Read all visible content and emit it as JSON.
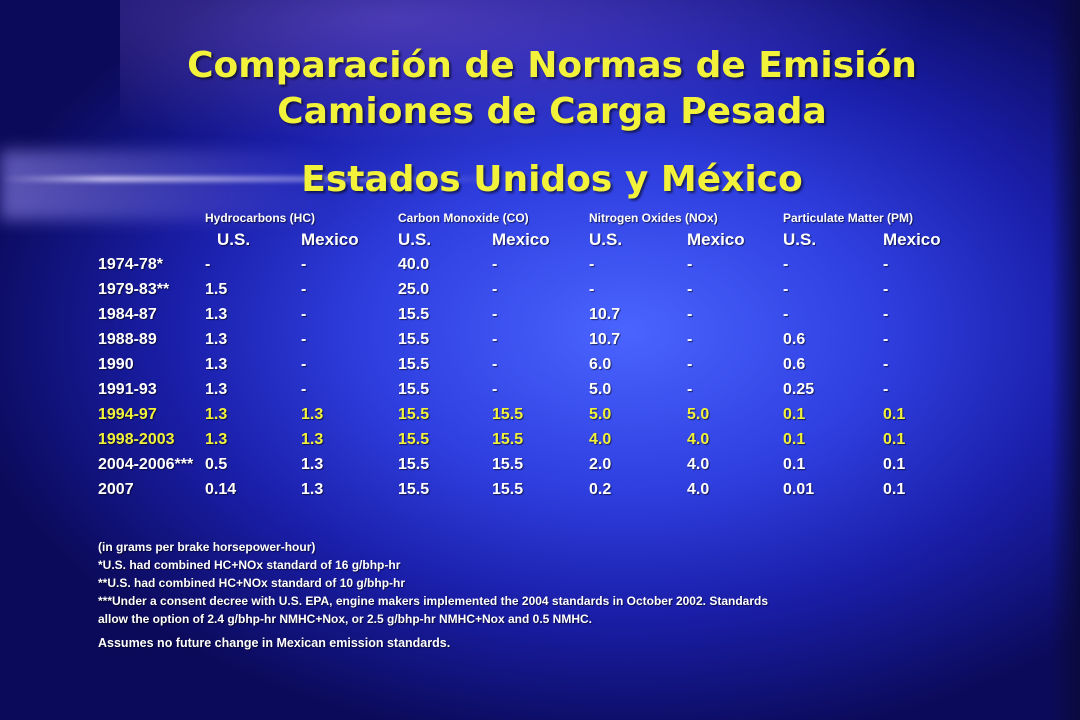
{
  "title": {
    "line1": "Comparación de Normas de Emisión",
    "line2": "Camiones de Carga Pesada",
    "line3": "Estados Unidos y México"
  },
  "table": {
    "pollutants": [
      "Hydrocarbons (HC)",
      "Carbon Monoxide (CO)",
      "Nitrogen Oxides (NOx)",
      "Particulate Matter (PM)"
    ],
    "units": [
      "U.S.",
      "Mexico",
      "U.S.",
      "Mexico",
      "U.S.",
      "Mexico",
      "U.S.",
      "Mexico"
    ],
    "rows": [
      {
        "year": "1974-78*",
        "values": [
          "-",
          "-",
          "40.0",
          "-",
          "-",
          "-",
          "-",
          "-"
        ]
      },
      {
        "year": "1979-83**",
        "values": [
          "1.5",
          "-",
          "25.0",
          "-",
          "-",
          "-",
          "-",
          "-"
        ]
      },
      {
        "year": "1984-87",
        "values": [
          "1.3",
          "-",
          "15.5",
          "-",
          "10.7",
          "-",
          "-",
          "-"
        ]
      },
      {
        "year": "1988-89",
        "values": [
          "1.3",
          "-",
          "15.5",
          "-",
          "10.7",
          "-",
          "0.6",
          "-"
        ]
      },
      {
        "year": "1990",
        "values": [
          "1.3",
          "-",
          "15.5",
          "-",
          "6.0",
          "-",
          "0.6",
          "-"
        ]
      },
      {
        "year": "1991-93",
        "values": [
          "1.3",
          "-",
          "15.5",
          "-",
          "5.0",
          "-",
          "0.25",
          "-"
        ]
      },
      {
        "year": "1994-97",
        "values": [
          "1.3",
          "1.3",
          "15.5",
          "15.5",
          "5.0",
          "5.0",
          "0.1",
          "0.1"
        ]
      },
      {
        "year": "1998-2003",
        "values": [
          "1.3",
          "1.3",
          "15.5",
          "15.5",
          "4.0",
          "4.0",
          "0.1",
          "0.1"
        ]
      },
      {
        "year": "2004-2006***",
        "values": [
          "0.5",
          "1.3",
          "15.5",
          "15.5",
          "2.0",
          "4.0",
          "0.1",
          "0.1"
        ]
      },
      {
        "year": "2007",
        "values": [
          "0.14",
          "1.3",
          "15.5",
          "15.5",
          "0.2",
          "4.0",
          "0.01",
          "0.1"
        ]
      }
    ]
  },
  "notes": {
    "units": "(in grams per brake horsepower-hour)",
    "note1": "*U.S. had combined HC+NOx standard of 16 g/bhp-hr",
    "note2": "**U.S. had combined HC+NOx standard of 10 g/bhp-hr",
    "note3a": "***Under a consent decree with U.S. EPA, engine makers implemented the 2004 standards in October 2002.  Standards",
    "note3b": "allow the option of 2.4 g/bhp-hr NMHC+Nox, or 2.5 g/bhp-hr NMHC+Nox and 0.5 NMHC.",
    "assumes": "Assumes no future change in Mexican emission standards."
  },
  "colors": {
    "title": "#f2f23a",
    "highlight_rows": "#f2f23a",
    "text": "#ffffff",
    "background": "#2f3fe0"
  }
}
